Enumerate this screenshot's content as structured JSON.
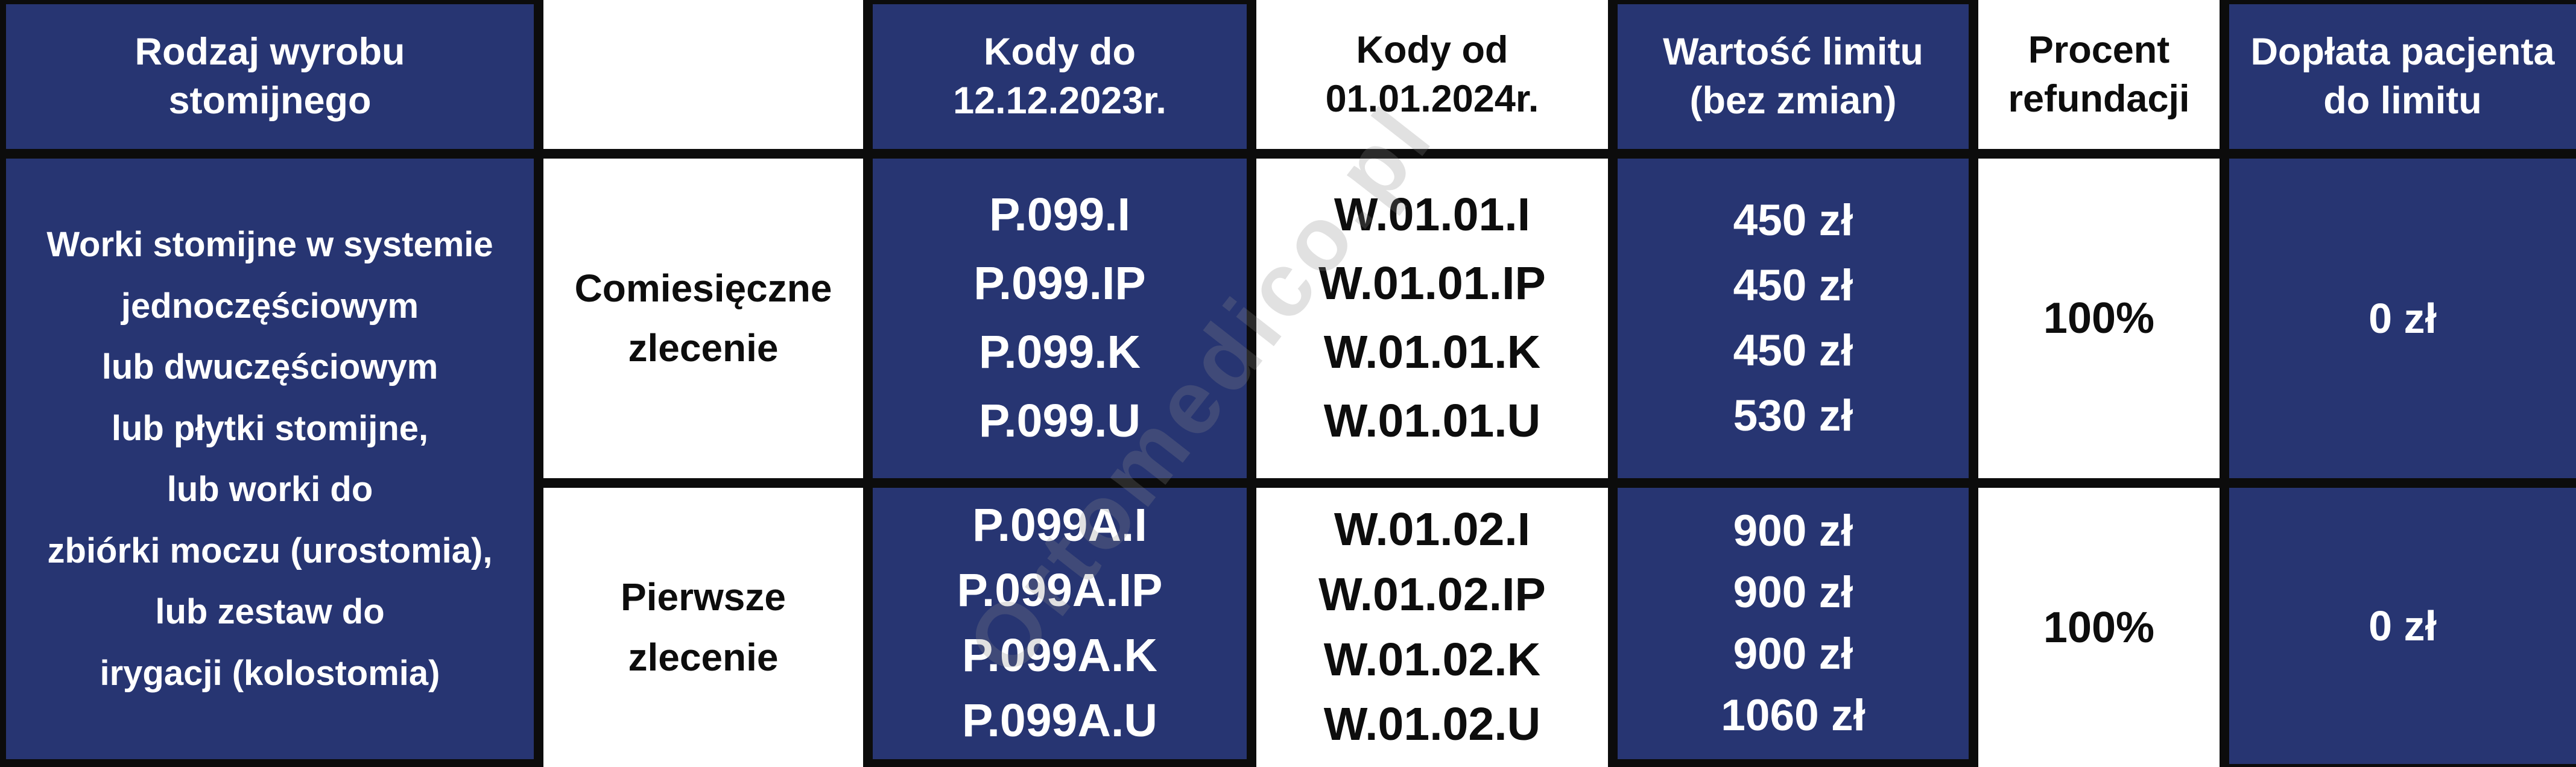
{
  "colors": {
    "blue": "#273572",
    "border": "#0c0c0c",
    "text_light": "#ffffff",
    "text_dark": "#0d0d0d",
    "watermark": "#8a8a8a"
  },
  "watermark": "Ortomedico.pl",
  "table": {
    "header": {
      "product_type": "Rodzaj wyrobu\nstomijnego",
      "order_type": "",
      "codes_until": "Kody do\n12.12.2023r.",
      "codes_from": "Kody od\n01.01.2024r.",
      "limit_value": "Wartość limitu\n(bez zmian)",
      "refund_percent": "Procent\nrefundacji",
      "patient_copay": "Dopłata pacjenta\ndo limitu"
    },
    "product_description": "Worki stomijne w systemie\njednoczęściowym\nlub dwuczęściowym\nlub płytki stomijne,\nlub worki do\nzbiórki moczu (urostomia),\nlub zestaw do\nirygacji (kolostomia)",
    "rows": [
      {
        "order_type": "Comiesięczne\nzlecenie",
        "codes_until": "P.099.I\nP.099.IP\nP.099.K\nP.099.U",
        "codes_from": "W.01.01.I\nW.01.01.IP\nW.01.01.K\nW.01.01.U",
        "limit_value": "450 zł\n450 zł\n450 zł\n530 zł",
        "refund_percent": "100%",
        "patient_copay": "0 zł"
      },
      {
        "order_type": "Pierwsze\nzlecenie",
        "codes_until": "P.099A.I\nP.099A.IP\nP.099A.K\nP.099A.U",
        "codes_from": "W.01.02.I\nW.01.02.IP\nW.01.02.K\nW.01.02.U",
        "limit_value": "900 zł\n900 zł\n900 zł\n1060 zł",
        "refund_percent": "100%",
        "patient_copay": "0 zł"
      }
    ]
  }
}
